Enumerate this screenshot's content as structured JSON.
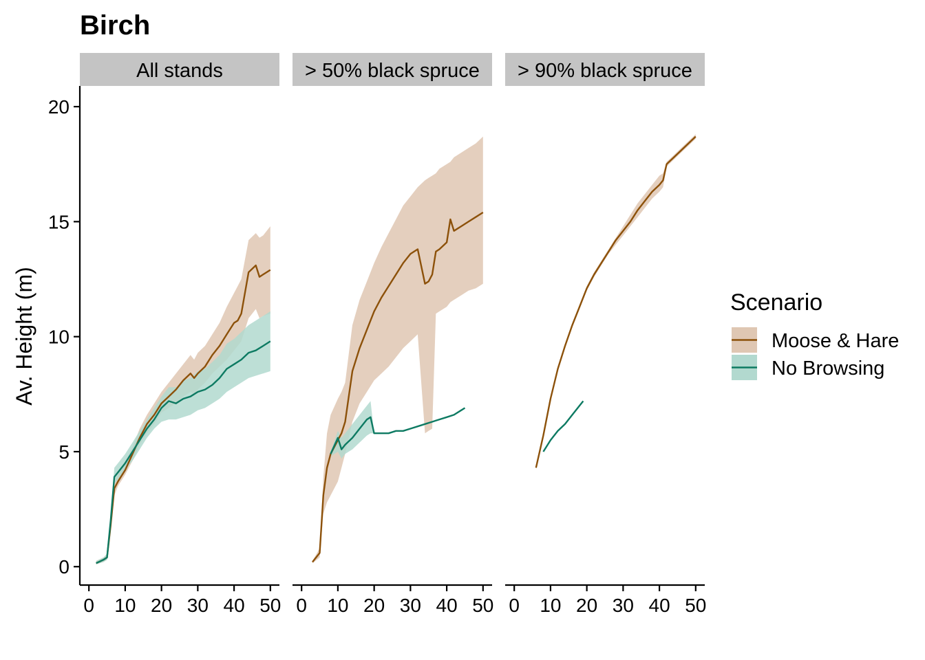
{
  "chart_data": {
    "type": "line",
    "title": "Birch",
    "ylabel": "Av. Height (m)",
    "xlabel": "",
    "ylim": [
      -0.8,
      20.9
    ],
    "xlim": [
      -2.5,
      52.5
    ],
    "x_ticks": [
      0,
      10,
      20,
      30,
      40,
      50
    ],
    "y_ticks": [
      0,
      5,
      10,
      15,
      20
    ],
    "grid": false,
    "legend": {
      "title": "Scenario",
      "position": "right",
      "entries": [
        {
          "name": "Moose & Hare",
          "color": "#8c510a",
          "ribbon_color": "#dfc7b3"
        },
        {
          "name": "No Browsing",
          "color": "#0d7a62",
          "ribbon_color": "#b2d9cf"
        }
      ]
    },
    "panels": [
      {
        "label": "All stands",
        "series": [
          {
            "name": "Moose & Hare",
            "x": [
              2,
              4,
              5,
              6,
              7,
              8,
              10,
              12,
              14,
              16,
              18,
              20,
              22,
              24,
              26,
              28,
              29,
              30,
              32,
              34,
              36,
              38,
              40,
              41,
              42,
              44,
              46,
              47,
              48,
              50
            ],
            "y": [
              0.15,
              0.3,
              0.4,
              1.8,
              3.4,
              3.7,
              4.2,
              4.9,
              5.6,
              6.2,
              6.6,
              7.1,
              7.4,
              7.7,
              8.1,
              8.4,
              8.2,
              8.4,
              8.7,
              9.2,
              9.6,
              10.1,
              10.6,
              10.7,
              11.0,
              12.8,
              13.1,
              12.6,
              12.7,
              12.9
            ],
            "lower": [
              0.1,
              0.2,
              0.3,
              1.5,
              3.1,
              3.5,
              4.0,
              4.6,
              5.3,
              5.8,
              6.2,
              6.7,
              6.9,
              7.1,
              7.4,
              7.6,
              7.5,
              7.7,
              8.0,
              8.4,
              8.7,
              9.0,
              9.4,
              9.6,
              9.8,
              10.8,
              11.2,
              10.8,
              10.9,
              11.0
            ],
            "upper": [
              0.25,
              0.4,
              0.55,
              2.1,
              3.7,
              4.0,
              4.5,
              5.2,
              6.0,
              6.6,
              7.1,
              7.6,
              8.0,
              8.4,
              8.8,
              9.2,
              9.0,
              9.3,
              9.6,
              10.1,
              10.6,
              11.3,
              11.9,
              12.2,
              12.5,
              14.2,
              14.5,
              14.3,
              14.4,
              14.8
            ]
          },
          {
            "name": "No Browsing",
            "x": [
              2,
              4,
              5,
              6,
              7,
              8,
              10,
              12,
              14,
              16,
              18,
              20,
              22,
              24,
              26,
              28,
              30,
              32,
              34,
              36,
              38,
              40,
              42,
              44,
              46,
              48,
              50
            ],
            "y": [
              0.15,
              0.3,
              0.4,
              2.0,
              3.9,
              4.1,
              4.5,
              5.0,
              5.5,
              6.0,
              6.4,
              6.9,
              7.2,
              7.1,
              7.3,
              7.4,
              7.6,
              7.7,
              7.9,
              8.2,
              8.6,
              8.8,
              9.0,
              9.3,
              9.4,
              9.6,
              9.8
            ],
            "lower": [
              0.1,
              0.2,
              0.3,
              1.7,
              3.6,
              3.8,
              4.2,
              4.6,
              5.1,
              5.6,
              6.0,
              6.3,
              6.4,
              6.4,
              6.5,
              6.6,
              6.8,
              6.9,
              7.1,
              7.3,
              7.6,
              7.8,
              8.0,
              8.2,
              8.3,
              8.4,
              8.5
            ],
            "upper": [
              0.25,
              0.4,
              0.55,
              2.3,
              4.3,
              4.5,
              4.9,
              5.4,
              5.9,
              6.4,
              6.9,
              7.4,
              7.8,
              7.8,
              8.1,
              8.2,
              8.5,
              8.6,
              8.9,
              9.2,
              9.7,
              9.9,
              10.2,
              10.5,
              10.7,
              10.9,
              11.1
            ]
          }
        ]
      },
      {
        "label": "> 50% black spruce",
        "series": [
          {
            "name": "Moose & Hare",
            "x": [
              3,
              5,
              6,
              7,
              8,
              10,
              11,
              12,
              14,
              16,
              18,
              20,
              22,
              24,
              26,
              28,
              30,
              32,
              34,
              35,
              36,
              37,
              38,
              40,
              41,
              42,
              44,
              46,
              48,
              50
            ],
            "y": [
              0.2,
              0.6,
              3.1,
              4.3,
              4.9,
              5.5,
              5.8,
              6.3,
              8.5,
              9.5,
              10.3,
              11.1,
              11.7,
              12.2,
              12.7,
              13.2,
              13.6,
              13.8,
              12.3,
              12.4,
              12.7,
              13.7,
              13.8,
              14.1,
              15.1,
              14.6,
              14.8,
              15.0,
              15.2,
              15.4
            ],
            "lower": [
              0.15,
              0.4,
              2.3,
              2.8,
              3.1,
              3.7,
              4.3,
              4.9,
              6.3,
              7.1,
              7.6,
              8.1,
              8.4,
              8.7,
              9.1,
              9.5,
              9.8,
              10.1,
              5.8,
              5.9,
              6.0,
              11.0,
              11.1,
              11.3,
              11.5,
              11.6,
              11.8,
              12.0,
              12.1,
              12.3
            ],
            "upper": [
              0.25,
              0.8,
              3.9,
              5.8,
              6.6,
              7.3,
              7.6,
              8.0,
              10.5,
              11.6,
              12.4,
              13.2,
              13.9,
              14.5,
              15.1,
              15.7,
              16.1,
              16.5,
              16.8,
              16.9,
              17.0,
              17.1,
              17.3,
              17.5,
              17.6,
              17.8,
              18.0,
              18.2,
              18.4,
              18.7
            ]
          },
          {
            "name": "No Browsing",
            "x": [
              8,
              10,
              11,
              12,
              14,
              16,
              18,
              19,
              20,
              22,
              24,
              26,
              28,
              30,
              32,
              34,
              36,
              38,
              40,
              42,
              44,
              45
            ],
            "y": [
              4.9,
              5.6,
              5.1,
              5.3,
              5.6,
              6.0,
              6.4,
              6.5,
              5.8,
              5.8,
              5.8,
              5.9,
              5.9,
              6.0,
              6.1,
              6.2,
              6.3,
              6.4,
              6.5,
              6.6,
              6.8,
              6.9
            ],
            "lower": [
              4.8,
              5.0,
              4.7,
              4.9,
              5.1,
              5.4,
              5.7,
              5.8,
              5.8,
              5.8,
              5.8,
              5.9,
              5.9,
              6.0,
              6.1,
              6.2,
              6.3,
              6.4,
              6.5,
              6.6,
              6.8,
              6.9
            ],
            "upper": [
              5.0,
              5.9,
              5.6,
              5.8,
              6.2,
              6.6,
              7.0,
              7.2,
              5.8,
              5.8,
              5.8,
              5.9,
              5.9,
              6.0,
              6.1,
              6.2,
              6.3,
              6.4,
              6.5,
              6.6,
              6.8,
              6.9
            ]
          }
        ]
      },
      {
        "label": "> 90% black spruce",
        "series": [
          {
            "name": "Moose & Hare",
            "x": [
              6,
              8,
              10,
              12,
              14,
              16,
              18,
              20,
              22,
              24,
              26,
              28,
              30,
              32,
              34,
              36,
              38,
              40,
              41,
              42,
              44,
              46,
              48,
              50
            ],
            "y": [
              4.3,
              5.7,
              7.3,
              8.6,
              9.6,
              10.5,
              11.3,
              12.1,
              12.7,
              13.2,
              13.7,
              14.2,
              14.6,
              15.0,
              15.5,
              15.9,
              16.3,
              16.6,
              16.8,
              17.5,
              17.8,
              18.1,
              18.4,
              18.7
            ],
            "lower": [
              4.3,
              5.6,
              7.2,
              8.5,
              9.5,
              10.4,
              11.2,
              12.0,
              12.6,
              13.1,
              13.6,
              14.0,
              14.4,
              14.8,
              15.2,
              15.6,
              16.0,
              16.3,
              16.5,
              17.4,
              17.7,
              18.0,
              18.3,
              18.6
            ],
            "upper": [
              4.3,
              5.8,
              7.4,
              8.7,
              9.7,
              10.6,
              11.4,
              12.2,
              12.8,
              13.3,
              13.8,
              14.3,
              14.8,
              15.3,
              15.8,
              16.2,
              16.6,
              17.0,
              17.1,
              17.6,
              17.9,
              18.2,
              18.5,
              18.8
            ]
          },
          {
            "name": "No Browsing",
            "x": [
              8,
              10,
              12,
              14,
              16,
              18,
              19
            ],
            "y": [
              5.0,
              5.5,
              5.9,
              6.2,
              6.6,
              7.0,
              7.2
            ],
            "lower": [
              5.0,
              5.5,
              5.9,
              6.2,
              6.6,
              7.0,
              7.2
            ],
            "upper": [
              5.0,
              5.5,
              5.9,
              6.2,
              6.6,
              7.0,
              7.2
            ]
          }
        ]
      }
    ]
  }
}
